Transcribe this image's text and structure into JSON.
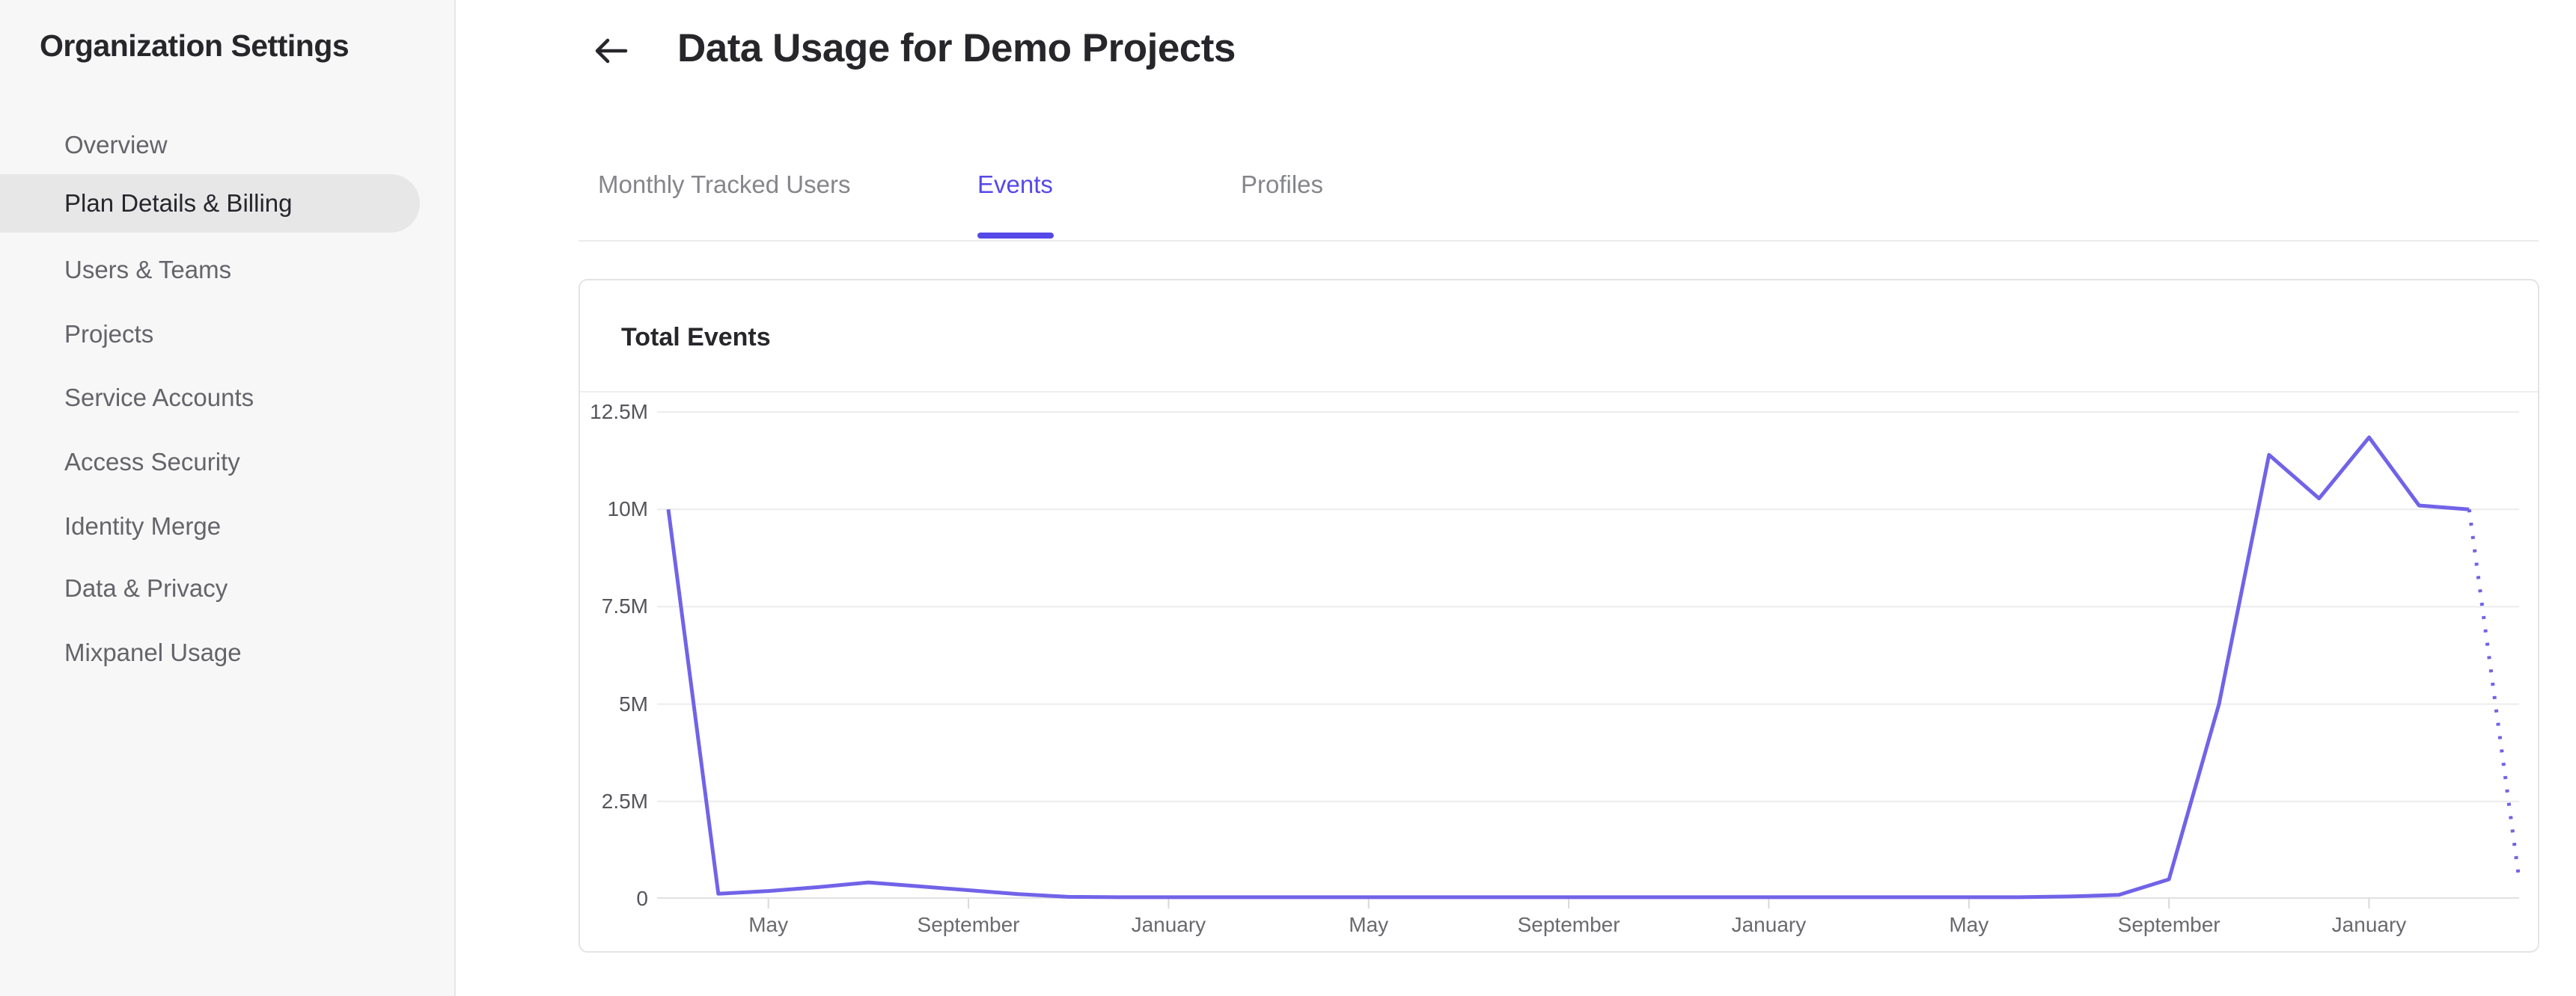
{
  "sidebar": {
    "title": "Organization Settings",
    "items": [
      {
        "label": "Overview",
        "active": false
      },
      {
        "label": "Plan Details & Billing",
        "active": true
      },
      {
        "label": "Users & Teams",
        "active": false
      },
      {
        "label": "Projects",
        "active": false
      },
      {
        "label": "Service Accounts",
        "active": false
      },
      {
        "label": "Access Security",
        "active": false
      },
      {
        "label": "Identity Merge",
        "active": false
      },
      {
        "label": "Data & Privacy",
        "active": false
      },
      {
        "label": "Mixpanel Usage",
        "active": false
      }
    ]
  },
  "header": {
    "back_icon": "arrow-left",
    "title": "Data Usage for Demo Projects"
  },
  "tabs": [
    {
      "label": "Monthly Tracked Users",
      "active": false
    },
    {
      "label": "Events",
      "active": true
    },
    {
      "label": "Profiles",
      "active": false
    }
  ],
  "card": {
    "title": "Total Events"
  },
  "chart_data": {
    "type": "line",
    "title": "Total Events",
    "series_name": "Total Events",
    "y_unit": "events",
    "ylim": [
      0,
      12500000
    ],
    "y_tick_labels": [
      "12.5M",
      "10M",
      "7.5M",
      "5M",
      "2.5M",
      "0"
    ],
    "y_tick_values_millions": [
      12.5,
      10,
      7.5,
      5,
      2.5,
      0
    ],
    "x_tick_labels": [
      "May",
      "September",
      "January",
      "May",
      "September",
      "January",
      "May",
      "September",
      "January"
    ],
    "x_tick_month_indices": [
      2,
      6,
      10,
      14,
      18,
      22,
      26,
      30,
      34
    ],
    "x_spacing": "monthly",
    "values_millions": [
      10.0,
      0.13,
      0.2,
      0.3,
      0.42,
      0.32,
      0.22,
      0.12,
      0.05,
      0.04,
      0.04,
      0.04,
      0.04,
      0.04,
      0.04,
      0.04,
      0.04,
      0.04,
      0.04,
      0.04,
      0.04,
      0.04,
      0.04,
      0.04,
      0.04,
      0.04,
      0.04,
      0.04,
      0.06,
      0.1,
      0.5,
      5.0,
      11.4,
      10.28,
      11.85,
      10.1,
      10.0,
      0.5
    ],
    "dotted_tail_points": 1,
    "grid": true,
    "legend_position": "none"
  },
  "colors": {
    "accent": "#5649e8",
    "line": "#7163e8",
    "grid": "#ececee",
    "axis": "#e1e1e3",
    "tick": "#d9d9db"
  }
}
